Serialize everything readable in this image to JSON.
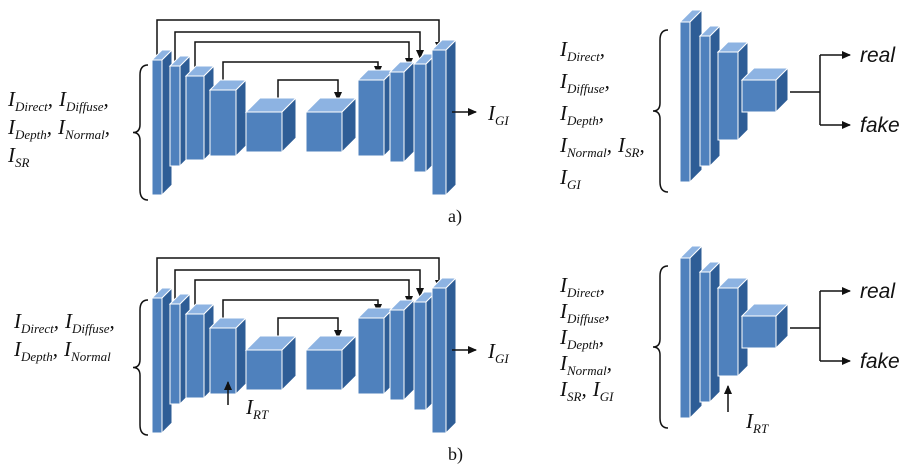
{
  "panel_a": {
    "caption": "a)",
    "generator": {
      "inputs": [
        [
          {
            "base": "I",
            "sub": "Direct",
            "sep": ","
          },
          {
            "base": "I",
            "sub": "Diffuse",
            "sep": ","
          }
        ],
        [
          {
            "base": "I",
            "sub": "Depth",
            "sep": ","
          },
          {
            "base": "I",
            "sub": "Normal",
            "sep": ","
          }
        ],
        [
          {
            "base": "I",
            "sub": "SR"
          }
        ]
      ],
      "output": {
        "base": "I",
        "sub": "GI"
      }
    },
    "discriminator": {
      "inputs": [
        [
          {
            "base": "I",
            "sub": "Direct",
            "sep": ","
          }
        ],
        [
          {
            "base": "I",
            "sub": "Diffuse",
            "sep": ","
          }
        ],
        [
          {
            "base": "I",
            "sub": "Depth",
            "sep": ","
          }
        ],
        [
          {
            "base": "I",
            "sub": "Normal",
            "sep": ","
          },
          {
            "base": "I",
            "sub": "SR",
            "sep": ","
          }
        ],
        [
          {
            "base": "I",
            "sub": "GI"
          }
        ]
      ],
      "outputs": [
        "real",
        "fake"
      ]
    }
  },
  "panel_b": {
    "caption": "b)",
    "generator": {
      "inputs": [
        [
          {
            "base": "I",
            "sub": "Direct",
            "sep": ","
          },
          {
            "base": "I",
            "sub": "Diffuse",
            "sep": ","
          }
        ],
        [
          {
            "base": "I",
            "sub": "Depth",
            "sep": ","
          },
          {
            "base": "I",
            "sub": "Normal"
          }
        ]
      ],
      "extra_input": {
        "base": "I",
        "sub": "RT"
      },
      "output": {
        "base": "I",
        "sub": "GI"
      }
    },
    "discriminator": {
      "inputs": [
        [
          {
            "base": "I",
            "sub": "Direct",
            "sep": ","
          }
        ],
        [
          {
            "base": "I",
            "sub": "Diffuse",
            "sep": ","
          }
        ],
        [
          {
            "base": "I",
            "sub": "Depth",
            "sep": ","
          }
        ],
        [
          {
            "base": "I",
            "sub": "Normal",
            "sep": ","
          }
        ],
        [
          {
            "base": "I",
            "sub": "SR",
            "sep": ","
          },
          {
            "base": "I",
            "sub": "GI"
          }
        ]
      ],
      "extra_input": {
        "base": "I",
        "sub": "RT"
      },
      "outputs": [
        "real",
        "fake"
      ]
    }
  }
}
